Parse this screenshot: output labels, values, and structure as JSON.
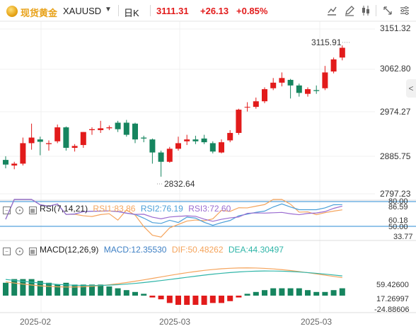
{
  "header": {
    "name": "现货黄金",
    "symbol": "XAUUSD",
    "period": "日K",
    "price": "3111.31",
    "change": "+26.13",
    "change_pct": "+0.85%"
  },
  "colors": {
    "up": "#e21b1b",
    "down": "#16855f",
    "rsi1": "#f5a45c",
    "rsi2": "#4a9fd8",
    "rsi3": "#9a6bd0",
    "dif": "#f5a45c",
    "dea": "#2fb5a8",
    "macd_line": "#3d7fc4"
  },
  "price_axis": [
    "3151.32",
    "3062.80",
    "2974.27",
    "2885.75",
    "2797.23"
  ],
  "price_annotations": {
    "high": "3115.91",
    "low": "2832.64"
  },
  "x_labels": [
    "2025-02",
    "2025-03",
    "2025-03"
  ],
  "rsi": {
    "title": "RSI(7,14,21)",
    "rsi1": "RSI1:83.86",
    "rsi2": "RSI2:76.19",
    "rsi3": "RSI3:72.60",
    "axis": [
      "80.00",
      "86.59",
      "60.18",
      "50.00",
      "33.77"
    ]
  },
  "macd": {
    "title": "MACD(12,26,9)",
    "macd": "MACD:12.35530",
    "dif": "DIF:50.48262",
    "dea": "DEA:44.30497",
    "axis": [
      "59.42600",
      "17.26997",
      "-24.88606"
    ]
  },
  "candles": [
    {
      "o": 2870,
      "h": 2878,
      "l": 2852,
      "c": 2860
    },
    {
      "o": 2858,
      "h": 2866,
      "l": 2850,
      "c": 2862
    },
    {
      "o": 2862,
      "h": 2918,
      "l": 2858,
      "c": 2906
    },
    {
      "o": 2906,
      "h": 2948,
      "l": 2892,
      "c": 2918
    },
    {
      "o": 2914,
      "h": 2920,
      "l": 2880,
      "c": 2909
    },
    {
      "o": 2904,
      "h": 2912,
      "l": 2890,
      "c": 2906
    },
    {
      "o": 2910,
      "h": 2946,
      "l": 2906,
      "c": 2940
    },
    {
      "o": 2940,
      "h": 2942,
      "l": 2890,
      "c": 2896
    },
    {
      "o": 2896,
      "h": 2904,
      "l": 2888,
      "c": 2900
    },
    {
      "o": 2902,
      "h": 2930,
      "l": 2896,
      "c": 2930
    },
    {
      "o": 2934,
      "h": 2940,
      "l": 2924,
      "c": 2936
    },
    {
      "o": 2934,
      "h": 2954,
      "l": 2928,
      "c": 2938
    },
    {
      "o": 2938,
      "h": 2944,
      "l": 2934,
      "c": 2940
    },
    {
      "o": 2950,
      "h": 2954,
      "l": 2930,
      "c": 2936
    },
    {
      "o": 2950,
      "h": 2956,
      "l": 2920,
      "c": 2924
    },
    {
      "o": 2948,
      "h": 2950,
      "l": 2906,
      "c": 2914
    },
    {
      "o": 2918,
      "h": 2922,
      "l": 2908,
      "c": 2916
    },
    {
      "o": 2914,
      "h": 2916,
      "l": 2862,
      "c": 2886
    },
    {
      "o": 2886,
      "h": 2890,
      "l": 2834,
      "c": 2866
    },
    {
      "o": 2866,
      "h": 2898,
      "l": 2864,
      "c": 2894
    },
    {
      "o": 2894,
      "h": 2920,
      "l": 2890,
      "c": 2906
    },
    {
      "o": 2910,
      "h": 2924,
      "l": 2902,
      "c": 2914
    },
    {
      "o": 2914,
      "h": 2922,
      "l": 2904,
      "c": 2910
    },
    {
      "o": 2916,
      "h": 2924,
      "l": 2904,
      "c": 2908
    },
    {
      "o": 2906,
      "h": 2910,
      "l": 2884,
      "c": 2888
    },
    {
      "o": 2886,
      "h": 2914,
      "l": 2884,
      "c": 2908
    },
    {
      "o": 2912,
      "h": 2934,
      "l": 2908,
      "c": 2928
    },
    {
      "o": 2928,
      "h": 2980,
      "l": 2924,
      "c": 2978
    },
    {
      "o": 2984,
      "h": 2994,
      "l": 2974,
      "c": 2984
    },
    {
      "o": 2984,
      "h": 3004,
      "l": 2980,
      "c": 2996
    },
    {
      "o": 2996,
      "h": 3026,
      "l": 2992,
      "c": 3022
    },
    {
      "o": 3024,
      "h": 3046,
      "l": 3020,
      "c": 3036
    },
    {
      "o": 3036,
      "h": 3058,
      "l": 3028,
      "c": 3046
    },
    {
      "o": 3042,
      "h": 3044,
      "l": 3002,
      "c": 3030
    },
    {
      "o": 3030,
      "h": 3034,
      "l": 3006,
      "c": 3014
    },
    {
      "o": 3012,
      "h": 3026,
      "l": 3006,
      "c": 3022
    },
    {
      "o": 3020,
      "h": 3030,
      "l": 3012,
      "c": 3018
    },
    {
      "o": 3024,
      "h": 3072,
      "l": 3020,
      "c": 3058
    },
    {
      "o": 3060,
      "h": 3090,
      "l": 3056,
      "c": 3086
    },
    {
      "o": 3090,
      "h": 3116,
      "l": 3084,
      "c": 3111
    }
  ],
  "macd_hist": [
    7,
    9,
    9,
    9,
    8,
    7,
    6,
    7,
    6,
    6,
    6,
    6,
    5,
    4,
    3,
    2,
    1,
    -1,
    -2,
    -4,
    -5,
    -5,
    -5,
    -5,
    -4,
    -4,
    -3,
    -1,
    1,
    2,
    3,
    4,
    4,
    4,
    4,
    3,
    2,
    2,
    3,
    4
  ]
}
